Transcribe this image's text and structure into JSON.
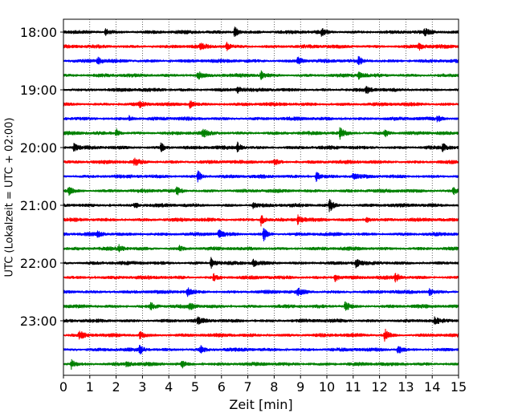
{
  "chart_data": {
    "type": "line",
    "subtype": "helicorder",
    "xlabel": "Zeit  [min]",
    "ylabel": "UTC (Lokalzeit = UTC + 02:00)",
    "xlim": [
      0,
      15
    ],
    "x_ticks": [
      "0",
      "1",
      "2",
      "3",
      "4",
      "5",
      "6",
      "7",
      "8",
      "9",
      "10",
      "11",
      "12",
      "13",
      "14",
      "15"
    ],
    "y_tick_labels": [
      "18:00",
      "19:00",
      "20:00",
      "21:00",
      "22:00",
      "23:00"
    ],
    "grid": "vertical dotted at each minute",
    "trace_interval_minutes": 15,
    "traces_start": "18:00",
    "trace_count": 24,
    "color_cycle": [
      "#000000",
      "#ff0000",
      "#0000ff",
      "#008000"
    ],
    "events": [
      {
        "row": 0,
        "t": 6.5,
        "amp": 0.9
      },
      {
        "row": 0,
        "t": 1.6,
        "amp": 0.5
      },
      {
        "row": 0,
        "t": 9.8,
        "amp": 0.5
      },
      {
        "row": 0,
        "t": 13.7,
        "amp": 0.5
      },
      {
        "row": 1,
        "t": 5.2,
        "amp": 0.5
      },
      {
        "row": 1,
        "t": 6.2,
        "amp": 0.6
      },
      {
        "row": 1,
        "t": 13.5,
        "amp": 0.6
      },
      {
        "row": 2,
        "t": 1.3,
        "amp": 0.6
      },
      {
        "row": 2,
        "t": 8.9,
        "amp": 0.8
      },
      {
        "row": 2,
        "t": 11.2,
        "amp": 0.6
      },
      {
        "row": 3,
        "t": 5.1,
        "amp": 0.7
      },
      {
        "row": 3,
        "t": 7.5,
        "amp": 0.6
      },
      {
        "row": 3,
        "t": 11.2,
        "amp": 0.5
      },
      {
        "row": 4,
        "t": 6.6,
        "amp": 0.5
      },
      {
        "row": 4,
        "t": 11.5,
        "amp": 0.5
      },
      {
        "row": 5,
        "t": 4.8,
        "amp": 0.6
      },
      {
        "row": 5,
        "t": 2.9,
        "amp": 0.4
      },
      {
        "row": 6,
        "t": 14.2,
        "amp": 0.5
      },
      {
        "row": 6,
        "t": 2.5,
        "amp": 0.4
      },
      {
        "row": 7,
        "t": 2.0,
        "amp": 0.7
      },
      {
        "row": 7,
        "t": 5.3,
        "amp": 0.6
      },
      {
        "row": 7,
        "t": 10.5,
        "amp": 0.9
      },
      {
        "row": 7,
        "t": 12.2,
        "amp": 0.6
      },
      {
        "row": 8,
        "t": 0.4,
        "amp": 0.6
      },
      {
        "row": 8,
        "t": 3.7,
        "amp": 0.7
      },
      {
        "row": 8,
        "t": 6.6,
        "amp": 0.8
      },
      {
        "row": 8,
        "t": 14.4,
        "amp": 0.6
      },
      {
        "row": 9,
        "t": 2.7,
        "amp": 0.6
      },
      {
        "row": 9,
        "t": 8.0,
        "amp": 0.5
      },
      {
        "row": 10,
        "t": 5.1,
        "amp": 0.9
      },
      {
        "row": 10,
        "t": 9.6,
        "amp": 0.8
      },
      {
        "row": 10,
        "t": 11.0,
        "amp": 0.4
      },
      {
        "row": 11,
        "t": 0.2,
        "amp": 0.6
      },
      {
        "row": 11,
        "t": 4.3,
        "amp": 0.6
      },
      {
        "row": 11,
        "t": 14.8,
        "amp": 0.5
      },
      {
        "row": 12,
        "t": 10.1,
        "amp": 1.0
      },
      {
        "row": 12,
        "t": 2.7,
        "amp": 0.5
      },
      {
        "row": 12,
        "t": 7.2,
        "amp": 0.4
      },
      {
        "row": 13,
        "t": 7.5,
        "amp": 0.9
      },
      {
        "row": 13,
        "t": 8.9,
        "amp": 0.7
      },
      {
        "row": 13,
        "t": 11.5,
        "amp": 0.5
      },
      {
        "row": 14,
        "t": 7.6,
        "amp": 1.0
      },
      {
        "row": 14,
        "t": 5.9,
        "amp": 0.7
      },
      {
        "row": 14,
        "t": 1.3,
        "amp": 0.4
      },
      {
        "row": 15,
        "t": 2.1,
        "amp": 0.5
      },
      {
        "row": 15,
        "t": 4.4,
        "amp": 0.4
      },
      {
        "row": 16,
        "t": 5.6,
        "amp": 0.9
      },
      {
        "row": 16,
        "t": 11.1,
        "amp": 0.6
      },
      {
        "row": 16,
        "t": 7.2,
        "amp": 0.5
      },
      {
        "row": 17,
        "t": 10.3,
        "amp": 0.8
      },
      {
        "row": 17,
        "t": 12.6,
        "amp": 0.7
      },
      {
        "row": 17,
        "t": 5.7,
        "amp": 0.5
      },
      {
        "row": 18,
        "t": 4.7,
        "amp": 0.7
      },
      {
        "row": 18,
        "t": 8.9,
        "amp": 0.5
      },
      {
        "row": 18,
        "t": 13.9,
        "amp": 0.5
      },
      {
        "row": 19,
        "t": 3.3,
        "amp": 0.6
      },
      {
        "row": 19,
        "t": 4.8,
        "amp": 0.5
      },
      {
        "row": 19,
        "t": 10.7,
        "amp": 0.8
      },
      {
        "row": 20,
        "t": 5.1,
        "amp": 0.5
      },
      {
        "row": 20,
        "t": 14.1,
        "amp": 0.5
      },
      {
        "row": 21,
        "t": 0.6,
        "amp": 0.7
      },
      {
        "row": 21,
        "t": 12.2,
        "amp": 1.0
      },
      {
        "row": 21,
        "t": 2.9,
        "amp": 0.5
      },
      {
        "row": 22,
        "t": 2.9,
        "amp": 0.7
      },
      {
        "row": 22,
        "t": 5.2,
        "amp": 0.5
      },
      {
        "row": 22,
        "t": 12.7,
        "amp": 0.7
      },
      {
        "row": 23,
        "t": 0.3,
        "amp": 0.7
      },
      {
        "row": 23,
        "t": 2.4,
        "amp": 0.5
      },
      {
        "row": 23,
        "t": 4.5,
        "amp": 0.5
      }
    ]
  }
}
